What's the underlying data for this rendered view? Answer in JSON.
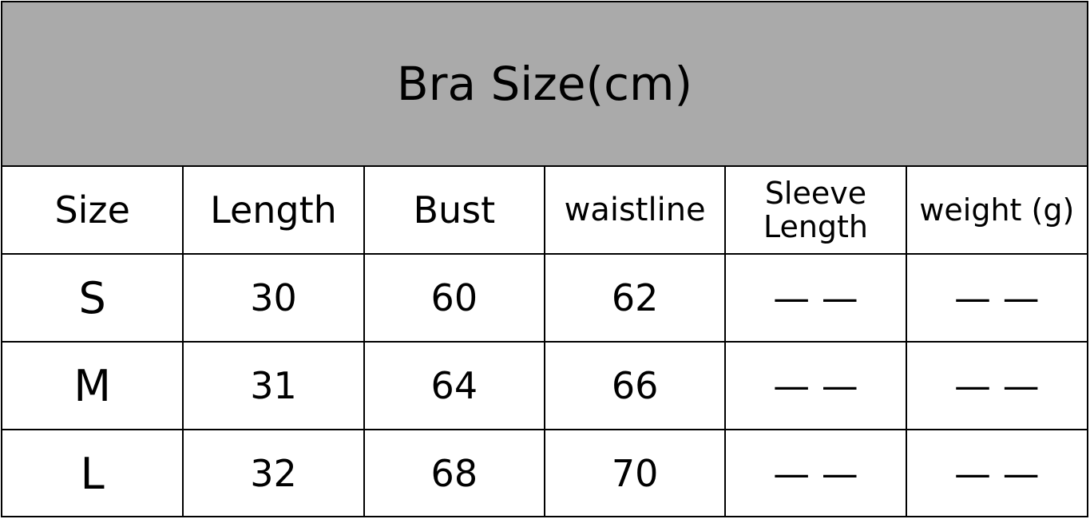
{
  "title": "Bra Size(cm)",
  "headers": [
    "Size",
    "Length",
    "Bust",
    "waistline",
    "Sleeve Length",
    "weight (g)"
  ],
  "rows": [
    [
      "S",
      "30",
      "60",
      "62",
      "— —",
      "— —"
    ],
    [
      "M",
      "31",
      "64",
      "66",
      "— —",
      "— —"
    ],
    [
      "L",
      "32",
      "68",
      "70",
      "— —",
      "— —"
    ]
  ]
}
